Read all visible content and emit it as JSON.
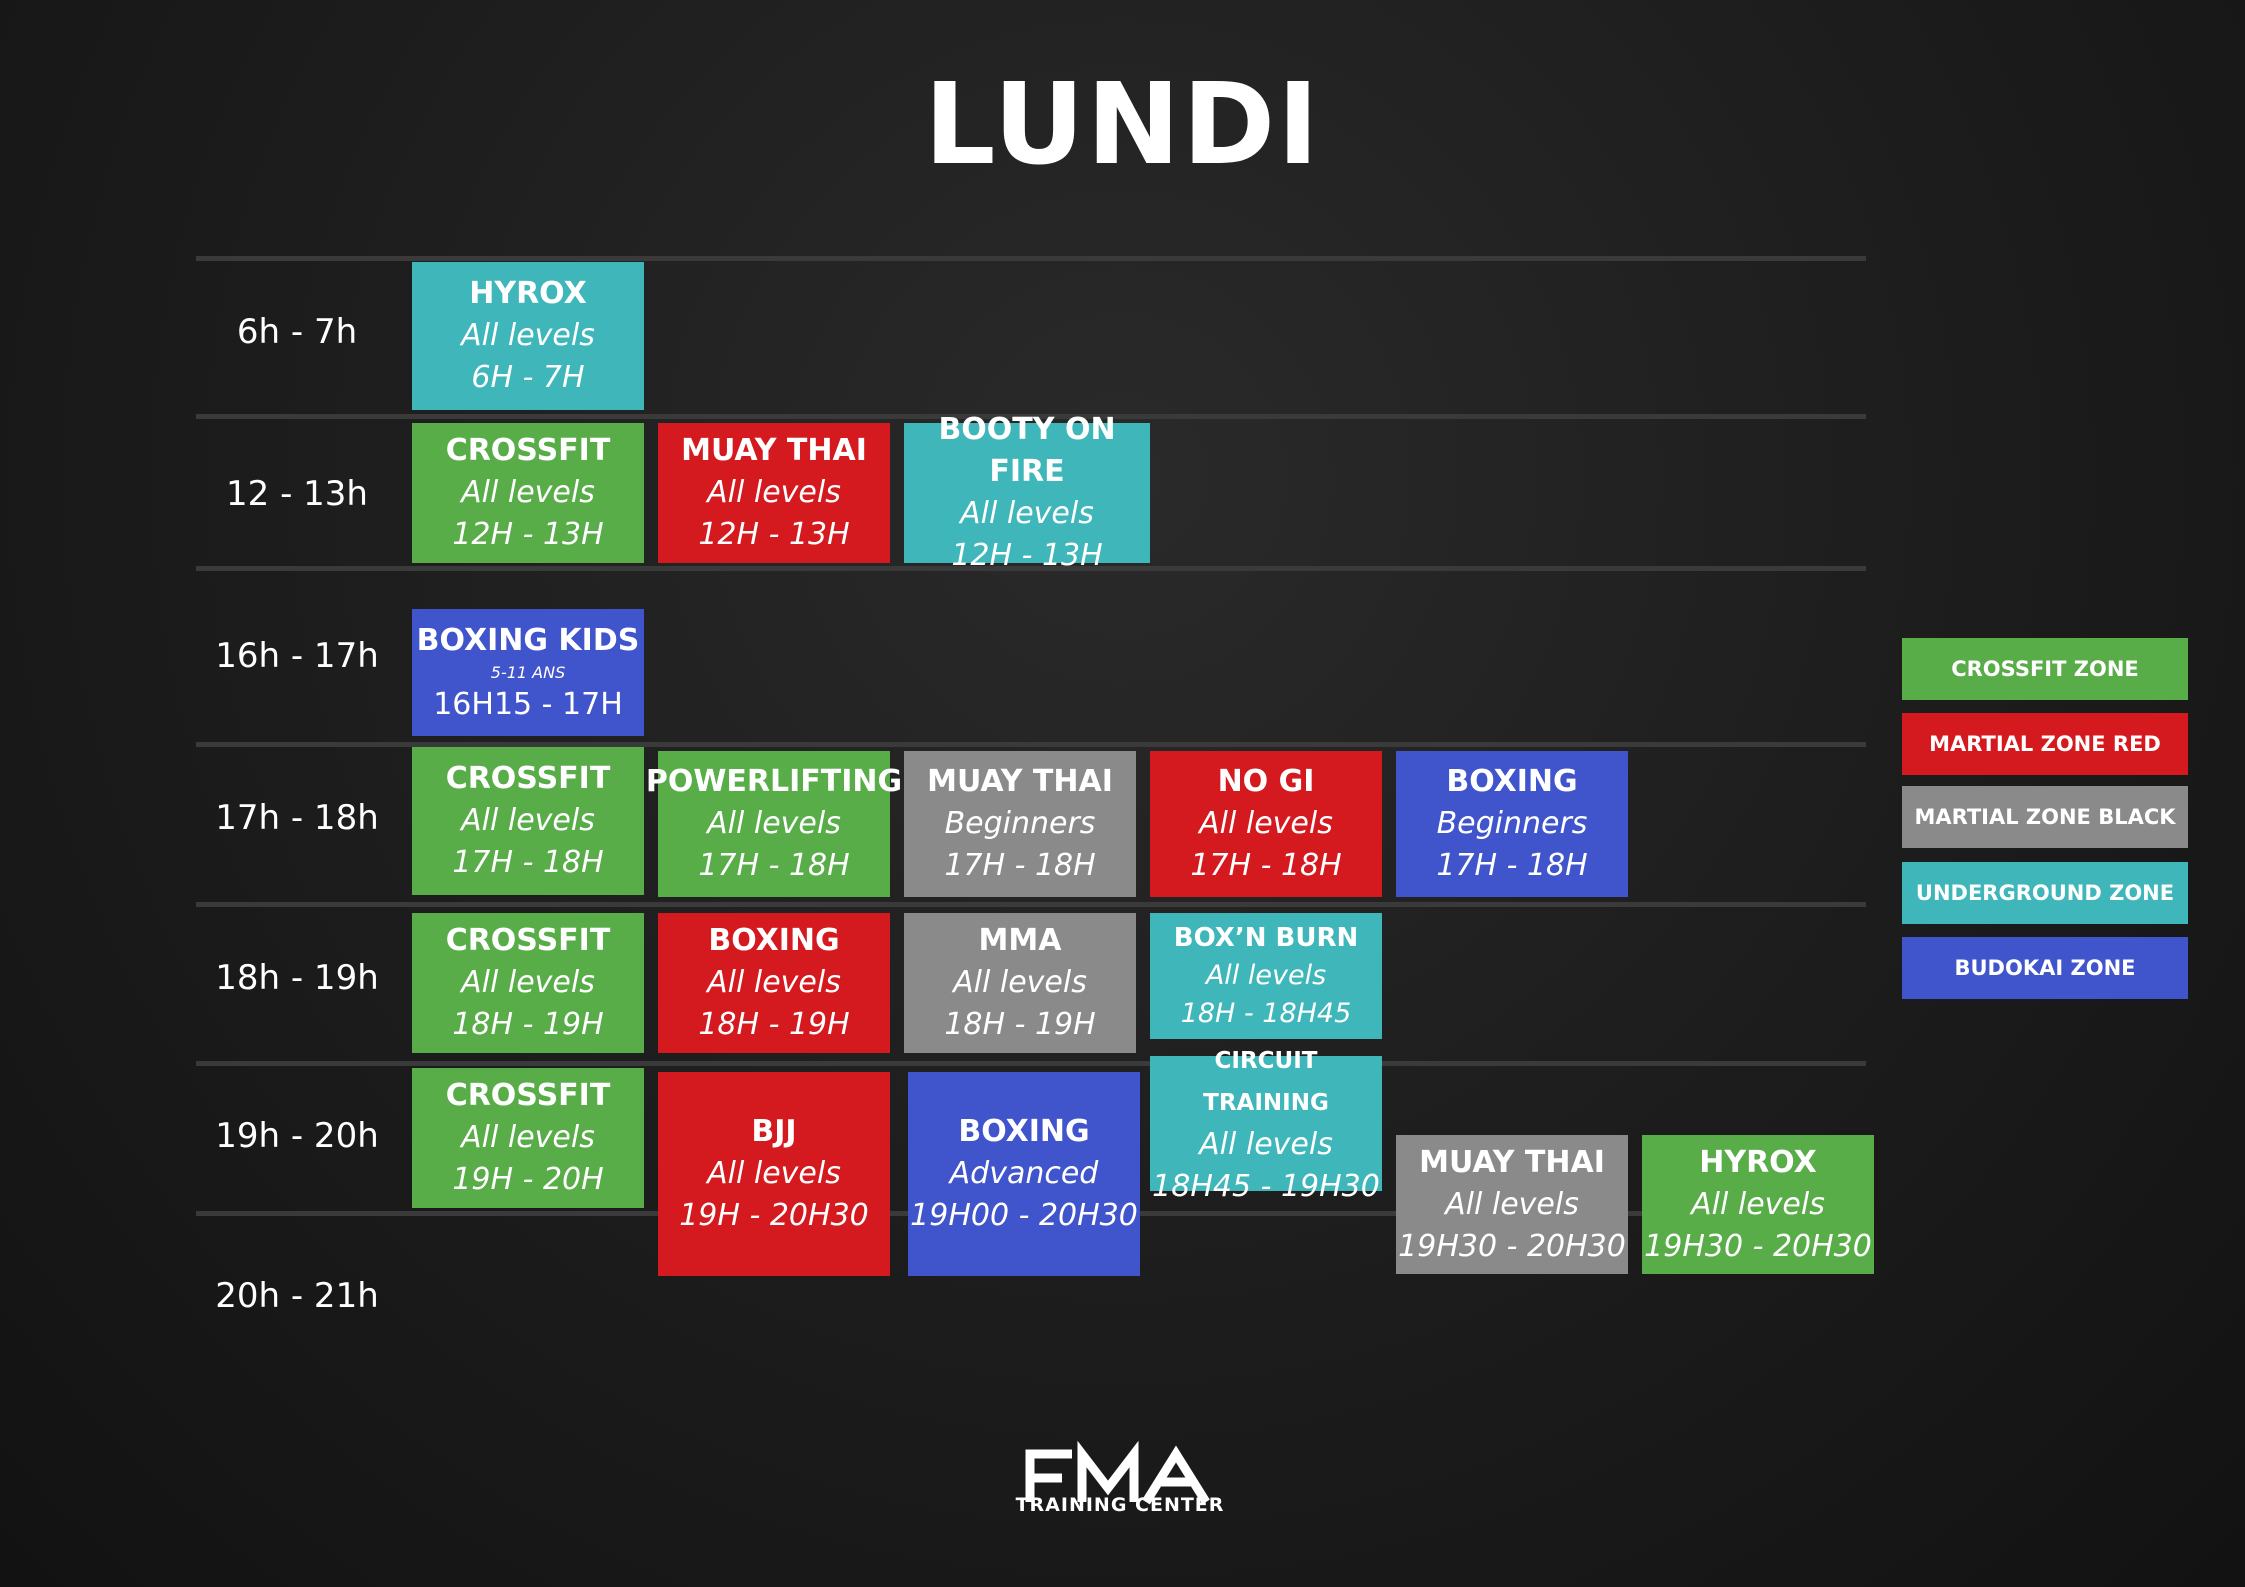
{
  "title": "LUNDI",
  "times": [
    "6h - 7h",
    "12 - 13h",
    "16h - 17h",
    "17h - 18h",
    "18h - 19h",
    "19h - 20h",
    "20h - 21h"
  ],
  "classes": [
    {
      "name": "HYROX",
      "level": "All levels",
      "time": "6H - 7H",
      "zone": "teal"
    },
    {
      "name": "CROSSFIT",
      "level": "All levels",
      "time": "12H - 13H",
      "zone": "green"
    },
    {
      "name": "MUAY THAI",
      "level": "All levels",
      "time": "12H - 13H",
      "zone": "red"
    },
    {
      "name": "BOOTY ON FIRE",
      "level": "All levels",
      "time": "12H - 13H",
      "zone": "teal"
    },
    {
      "name": "BOXING KIDS",
      "level": "5-11 ANS",
      "time": "16H15 - 17H",
      "zone": "blue"
    },
    {
      "name": "CROSSFIT",
      "level": "All levels",
      "time": "17H - 18H",
      "zone": "green"
    },
    {
      "name": "POWERLIFTING",
      "level": "All levels",
      "time": "17H - 18H",
      "zone": "green"
    },
    {
      "name": "MUAY THAI",
      "level": "Beginners",
      "time": "17H - 18H",
      "zone": "grey"
    },
    {
      "name": "NO GI",
      "level": "All levels",
      "time": "17H - 18H",
      "zone": "red"
    },
    {
      "name": "BOXING",
      "level": "Beginners",
      "time": "17H - 18H",
      "zone": "blue"
    },
    {
      "name": "CROSSFIT",
      "level": "All levels",
      "time": "18H - 19H",
      "zone": "green"
    },
    {
      "name": "BOXING",
      "level": "All levels",
      "time": "18H - 19H",
      "zone": "red"
    },
    {
      "name": "MMA",
      "level": "All levels",
      "time": "18H - 19H",
      "zone": "grey"
    },
    {
      "name": "BOX’N BURN",
      "level": "All levels",
      "time": "18H - 18H45",
      "zone": "teal"
    },
    {
      "name": "CROSSFIT",
      "level": "All levels",
      "time": "19H - 20H",
      "zone": "green"
    },
    {
      "name": "BJJ",
      "level": "All levels",
      "time": "19H - 20H30",
      "zone": "red"
    },
    {
      "name": "BOXING",
      "level": "Advanced",
      "time": "19H00 - 20H30",
      "zone": "blue"
    },
    {
      "name": "CIRCUIT TRAINING",
      "level": "All levels",
      "time": "18H45 - 19H30",
      "zone": "teal"
    },
    {
      "name": "MUAY THAI",
      "level": "All levels",
      "time": "19H30 - 20H30",
      "zone": "grey"
    },
    {
      "name": "HYROX",
      "level": "All levels",
      "time": "19H30 - 20H30",
      "zone": "green"
    }
  ],
  "legend": [
    {
      "label": "CROSSFIT ZONE",
      "color": "#58ad48"
    },
    {
      "label": "MARTIAL ZONE RED",
      "color": "#d4191f"
    },
    {
      "label": "MARTIAL ZONE BLACK",
      "color": "#8a8a8a"
    },
    {
      "label": "UNDERGROUND ZONE",
      "color": "#3eb6ba"
    },
    {
      "label": "BUDOKAI ZONE",
      "color": "#4054cc"
    }
  ],
  "logo": {
    "text": "FMA",
    "subtitle": "TRAINING CENTER"
  }
}
